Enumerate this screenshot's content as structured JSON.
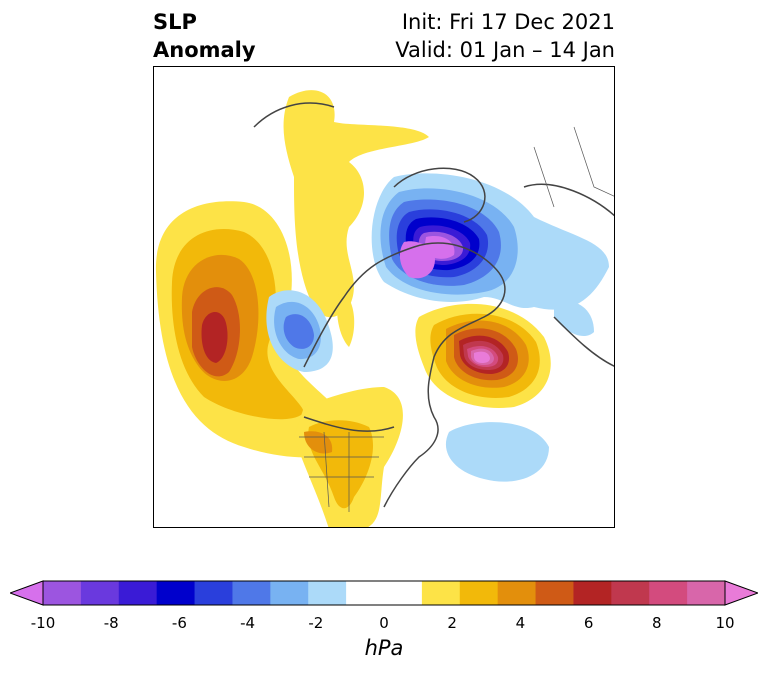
{
  "title": {
    "line1": "SLP",
    "line2": "Anomaly"
  },
  "info": {
    "init": "Init: Fri 17 Dec 2021",
    "valid": "Valid: 01 Jan – 14 Jan"
  },
  "colorbar": {
    "unit": "hPa",
    "min": -10,
    "max": 10,
    "ticks": [
      "-10",
      "-8",
      "-6",
      "-4",
      "-2",
      "0",
      "2",
      "4",
      "6",
      "8",
      "10"
    ],
    "colors": [
      "#d670ec",
      "#9c55e0",
      "#6a39de",
      "#3a1bd6",
      "#0000cc",
      "#2a3fdc",
      "#4f78e8",
      "#78b2f2",
      "#acdaf9",
      "#ffffff",
      "#ffffff",
      "#fde347",
      "#f2b90a",
      "#e38f0c",
      "#cf5a16",
      "#b32424",
      "#c0384e",
      "#d34b7e",
      "#d866aa",
      "#e97bd8"
    ]
  }
}
